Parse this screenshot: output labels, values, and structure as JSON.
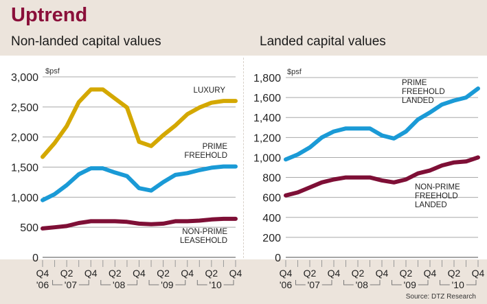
{
  "header": {
    "title": "Uptrend",
    "left_subtitle": "Non-landed capital values",
    "right_subtitle": "Landed capital values"
  },
  "source": "Source: DTZ Research",
  "colors": {
    "title": "#8a0f3a",
    "luxury": "#d4a800",
    "prime": "#1a9ad6",
    "nonprime": "#7e0f36",
    "grid": "#a8a8a8",
    "background": "#ece4dc"
  },
  "chart_data": [
    {
      "type": "line",
      "title": "Non-landed capital values",
      "ylabel": "$psf",
      "ylim": [
        0,
        3000
      ],
      "yticks": [
        0,
        500,
        1000,
        1500,
        2000,
        2500,
        3000
      ],
      "ytick_labels": [
        "0",
        "500",
        "1,000",
        "1,500",
        "2,000",
        "2,500",
        "3,000"
      ],
      "x": [
        "Q4 '06",
        "Q1 '07",
        "Q2 '07",
        "Q3 '07",
        "Q4 '07",
        "Q1 '08",
        "Q2 '08",
        "Q3 '08",
        "Q4 '08",
        "Q1 '09",
        "Q2 '09",
        "Q3 '09",
        "Q4 '09",
        "Q1 '10",
        "Q2 '10",
        "Q3 '10",
        "Q4 '10"
      ],
      "xtick_labels": [
        {
          "q": "Q4",
          "year": "'06"
        },
        {
          "q": "",
          "year": ""
        },
        {
          "q": "Q2",
          "year": ""
        },
        {
          "q": "",
          "year": "'07"
        },
        {
          "q": "Q4",
          "year": ""
        },
        {
          "q": "",
          "year": ""
        },
        {
          "q": "Q2",
          "year": ""
        },
        {
          "q": "",
          "year": "'08"
        },
        {
          "q": "Q4",
          "year": ""
        },
        {
          "q": "",
          "year": ""
        },
        {
          "q": "Q2",
          "year": ""
        },
        {
          "q": "",
          "year": "'09"
        },
        {
          "q": "Q4",
          "year": ""
        },
        {
          "q": "",
          "year": ""
        },
        {
          "q": "Q2",
          "year": ""
        },
        {
          "q": "",
          "year": "'10"
        },
        {
          "q": "Q4",
          "year": ""
        }
      ],
      "grid": true,
      "series": [
        {
          "name": "LUXURY",
          "label_lines": [
            "LUXURY"
          ],
          "color_key": "luxury",
          "values": [
            1670,
            1900,
            2180,
            2580,
            2790,
            2790,
            2640,
            2490,
            1920,
            1850,
            2030,
            2190,
            2380,
            2490,
            2570,
            2600,
            2600
          ]
        },
        {
          "name": "PRIME FREEHOLD",
          "label_lines": [
            "PRIME",
            "FREEHOLD"
          ],
          "color_key": "prime",
          "values": [
            950,
            1050,
            1200,
            1380,
            1480,
            1480,
            1410,
            1350,
            1150,
            1110,
            1250,
            1370,
            1400,
            1450,
            1490,
            1510,
            1510
          ]
        },
        {
          "name": "NON-PRIME LEASEHOLD",
          "label_lines": [
            "NON-PRIME",
            "LEASEHOLD"
          ],
          "color_key": "nonprime",
          "values": [
            480,
            500,
            520,
            570,
            600,
            600,
            600,
            590,
            560,
            550,
            560,
            600,
            600,
            610,
            630,
            640,
            640
          ]
        }
      ]
    },
    {
      "type": "line",
      "title": "Landed capital values",
      "ylabel": "$psf",
      "ylim": [
        0,
        1800
      ],
      "yticks": [
        0,
        200,
        400,
        600,
        800,
        1000,
        1200,
        1400,
        1600,
        1800
      ],
      "ytick_labels": [
        "0",
        "200",
        "400",
        "600",
        "800",
        "1,000",
        "1,200",
        "1,400",
        "1,600",
        "1,800"
      ],
      "x": [
        "Q4 '06",
        "Q1 '07",
        "Q2 '07",
        "Q3 '07",
        "Q4 '07",
        "Q1 '08",
        "Q2 '08",
        "Q3 '08",
        "Q4 '08",
        "Q1 '09",
        "Q2 '09",
        "Q3 '09",
        "Q4 '09",
        "Q1 '10",
        "Q2 '10",
        "Q3 '10",
        "Q4 '10"
      ],
      "grid": true,
      "series": [
        {
          "name": "PRIME FREEHOLD LANDED",
          "label_lines": [
            "PRIME",
            "FREEHOLD",
            "LANDED"
          ],
          "color_key": "prime",
          "values": [
            980,
            1030,
            1100,
            1200,
            1260,
            1290,
            1290,
            1290,
            1220,
            1190,
            1260,
            1380,
            1450,
            1530,
            1570,
            1600,
            1690
          ]
        },
        {
          "name": "NON-PRIME FREEHOLD LANDED",
          "label_lines": [
            "NON-PRIME",
            "FREEHOLD",
            "LANDED"
          ],
          "color_key": "nonprime",
          "values": [
            620,
            650,
            700,
            750,
            780,
            800,
            800,
            800,
            770,
            750,
            780,
            840,
            870,
            920,
            950,
            960,
            1000
          ]
        }
      ]
    }
  ]
}
